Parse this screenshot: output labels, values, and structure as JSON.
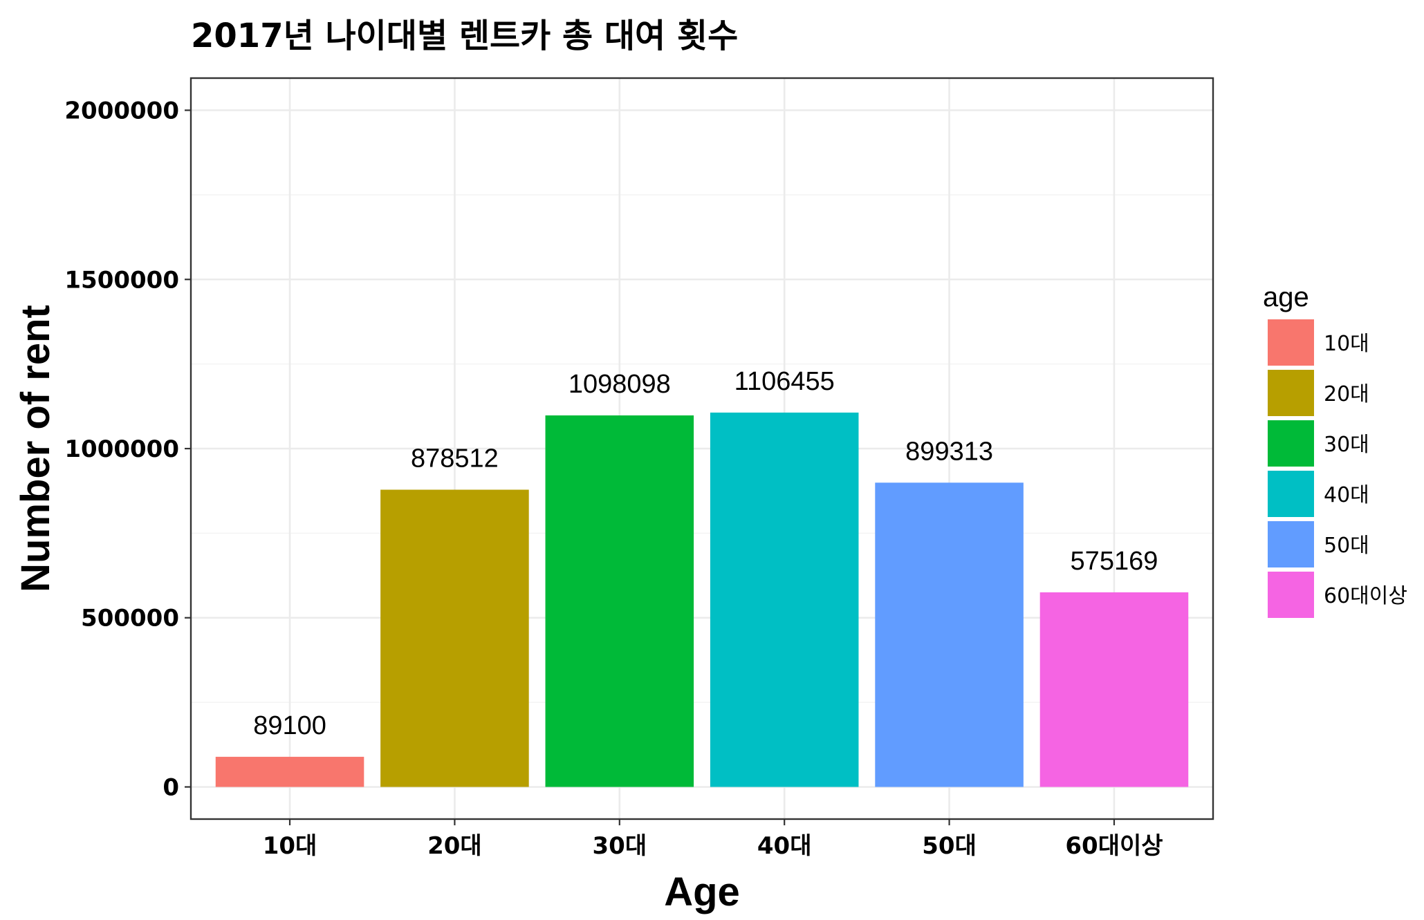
{
  "chart_data": {
    "type": "bar",
    "title": "2017년 나이대별 렌트카 총 대여 횟수",
    "xlabel": "Age",
    "ylabel": "Number of rent",
    "categories": [
      "10대",
      "20대",
      "30대",
      "40대",
      "50대",
      "60대이상"
    ],
    "values": [
      89100,
      878512,
      1098098,
      1106455,
      899313,
      575169
    ],
    "colors": [
      "#F8766D",
      "#B79F00",
      "#00BA38",
      "#00BFC4",
      "#619CFF",
      "#F564E3"
    ],
    "ylim": [
      -95000,
      2095000
    ],
    "yticks": [
      0,
      500000,
      1000000,
      1500000,
      2000000
    ],
    "ytick_labels": [
      "0",
      "500000",
      "1000000",
      "1500000",
      "2000000"
    ],
    "data_labels": [
      "89100",
      "878512",
      "1098098",
      "1106455",
      "899313",
      "575169"
    ],
    "grid": true,
    "legend": {
      "title": "age",
      "position": "right",
      "entries": [
        "10대",
        "20대",
        "30대",
        "40대",
        "50대",
        "60대이상"
      ]
    }
  }
}
